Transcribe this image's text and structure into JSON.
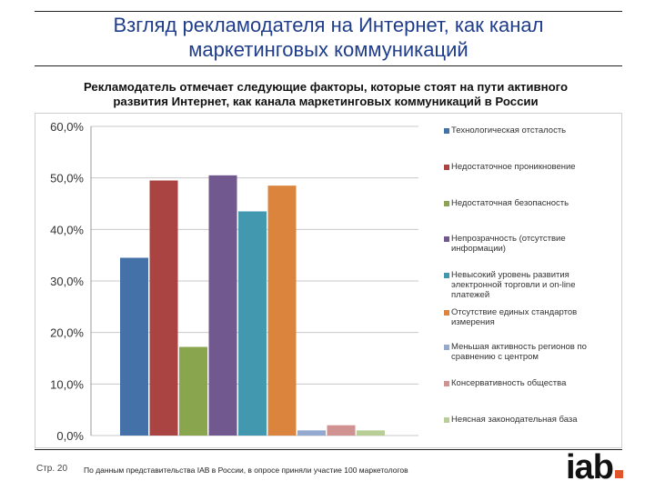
{
  "title_line1": "Взгляд рекламодателя на Интернет, как канал",
  "title_line2": "маркетинговых коммуникаций",
  "subtitle_line1": "Рекламодатель отмечает следующие факторы, которые стоят на пути активного",
  "subtitle_line2": "развития Интернет, как канала маркетинговых коммуникаций в России",
  "chart_data": {
    "type": "bar",
    "title": "",
    "xlabel": "",
    "ylabel": "",
    "ylim": [
      0,
      60
    ],
    "yticks": [
      "0,0%",
      "10,0%",
      "20,0%",
      "30,0%",
      "40,0%",
      "50,0%",
      "60,0%"
    ],
    "grid": true,
    "legend_position": "right",
    "series": [
      {
        "name": "Технологическая отсталость",
        "values": [
          34.5
        ],
        "color": "#4472a8"
      },
      {
        "name": "Недостаточное проникновение",
        "values": [
          49.5
        ],
        "color": "#aa4442"
      },
      {
        "name": "Недостаточная безопасность",
        "values": [
          17.2
        ],
        "color": "#89a54e"
      },
      {
        "name": "Непрозрачность (отсутствие информации)",
        "values": [
          50.5
        ],
        "color": "#71588f"
      },
      {
        "name": "Невысокий уровень развития электронной торговли и on-line платежей",
        "values": [
          43.5
        ],
        "color": "#4198af"
      },
      {
        "name": "Отсутствие единых стандартов измерения",
        "values": [
          48.5
        ],
        "color": "#db843d"
      },
      {
        "name": "Меньшая активность регионов по сравнению с центром",
        "values": [
          1.0
        ],
        "color": "#93a9cf"
      },
      {
        "name": "Консервативность общества",
        "values": [
          2.0
        ],
        "color": "#d19392"
      },
      {
        "name": "Неясная законодательная база",
        "values": [
          1.0
        ],
        "color": "#b9cd96"
      }
    ]
  },
  "legend": [
    {
      "line1": "Технологическая отсталость",
      "line2": "",
      "line3": ""
    },
    {
      "line1": "Недостаточное проникновение",
      "line2": "",
      "line3": ""
    },
    {
      "line1": "Недостаточная безопасность",
      "line2": "",
      "line3": ""
    },
    {
      "line1": "Непрозрачность (отсутствие",
      "line2": "информации)",
      "line3": ""
    },
    {
      "line1": "Невысокий уровень развития",
      "line2": "электронной торговли и on-line",
      "line3": "платежей"
    },
    {
      "line1": "Отсутствие единых стандартов",
      "line2": "измерения",
      "line3": ""
    },
    {
      "line1": "Меньшая активность регионов по",
      "line2": "сравнению с центром",
      "line3": ""
    },
    {
      "line1": "Консервативность общества",
      "line2": "",
      "line3": ""
    },
    {
      "line1": "Неясная законодательная база",
      "line2": "",
      "line3": ""
    }
  ],
  "footer": {
    "page": "Стр. 20",
    "note": "По данным представительства IAB в России, в опросе приняли участие 100 маркетологов",
    "logo": "iab"
  }
}
